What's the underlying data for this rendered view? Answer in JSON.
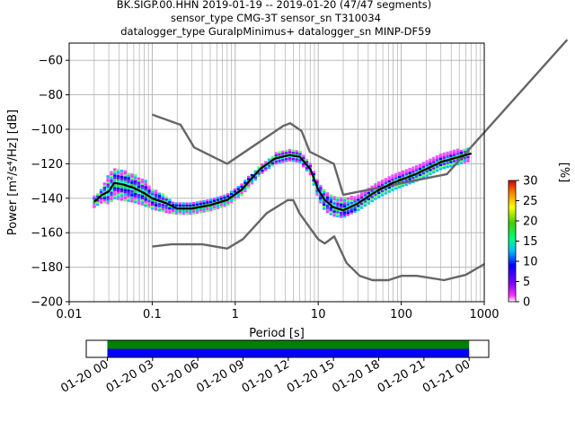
{
  "title": {
    "line1": "BK.SIGP.00.HHN   2019-01-19 -- 2019-01-20  (47/47 segments)",
    "line2": "sensor_type CMG-3T sensor_sn T310034",
    "line3": "datalogger_type GuralpMinimus+ datalogger_sn MINP-DF59"
  },
  "colors": {
    "mean_line": "#000000",
    "noise_models": "#666666",
    "timeline_green": "#008000",
    "timeline_blue": "#0000ff"
  },
  "chart_data": [
    {
      "type": "heatmap",
      "chart_kind": "probabilistic power spectral density",
      "xlabel": "Period [s]",
      "ylabel": "Power [m²/s⁴/Hz] [dB]",
      "xscale": "log",
      "xlim": [
        0.01,
        1000
      ],
      "ylim": [
        -200,
        -50
      ],
      "x_ticks": [
        "0.01",
        "0.1",
        "1",
        "10",
        "100",
        "1000"
      ],
      "y_ticks": [
        "−60",
        "−80",
        "−100",
        "−120",
        "−140",
        "−160",
        "−180",
        "−200"
      ],
      "grid": true,
      "colorbar": {
        "label": "[%]",
        "range": [
          0,
          30
        ],
        "ticks": [
          "0",
          "5",
          "10",
          "15",
          "20",
          "25",
          "30"
        ]
      },
      "series": [
        {
          "name": "",
          "role": "mean",
          "color": "#000000",
          "x": [
            0.02,
            0.025,
            0.03,
            0.035,
            0.045,
            0.06,
            0.08,
            0.1,
            0.15,
            0.2,
            0.3,
            0.5,
            0.8,
            1.2,
            2,
            3,
            4.5,
            6,
            8,
            10,
            12,
            15,
            20,
            30,
            50,
            80,
            150,
            300,
            700
          ],
          "y": [
            -142,
            -138,
            -136,
            -131,
            -132,
            -134,
            -137,
            -140,
            -143,
            -146,
            -146,
            -144,
            -141,
            -135,
            -123,
            -117,
            -115,
            -116,
            -123,
            -135,
            -141,
            -145,
            -147,
            -143,
            -136,
            -131,
            -126,
            -119,
            -114
          ]
        },
        {
          "name": "",
          "role": "new high noise model",
          "color": "#666666",
          "x": [
            0.1,
            0.22,
            0.32,
            0.8,
            3.8,
            4.6,
            6.3,
            7.9,
            15.4,
            20,
            354.8,
            10000
          ],
          "y": [
            -91.5,
            -97.4,
            -110.5,
            -120,
            -98,
            -96.5,
            -101,
            -113,
            -120,
            -138,
            -126,
            -48
          ]
        },
        {
          "name": "",
          "role": "new low noise model",
          "color": "#666666",
          "x": [
            0.1,
            0.17,
            0.4,
            0.8,
            1.24,
            2.4,
            4.3,
            5,
            6,
            10,
            12,
            15.6,
            21.9,
            31.6,
            45,
            70,
            101,
            154,
            328,
            600,
            1000
          ],
          "y": [
            -168,
            -166.7,
            -166.7,
            -169.2,
            -163.7,
            -148.6,
            -141.1,
            -141.1,
            -149,
            -163.8,
            -166.2,
            -162.1,
            -177.5,
            -185,
            -187.5,
            -187.5,
            -185,
            -185,
            -187.5,
            -184.4,
            -178.2
          ]
        }
      ],
      "density_bands": [
        {
          "x": [
            0.02,
            0.025,
            0.03,
            0.035,
            0.045,
            0.06,
            0.08,
            0.1,
            0.15,
            0.2,
            0.3,
            0.5,
            0.8,
            1.2,
            2,
            3,
            4.5,
            6,
            8,
            10,
            12,
            15,
            20,
            30,
            50,
            80,
            150,
            300,
            700
          ],
          "low": [
            -145,
            -142,
            -143,
            -140,
            -141,
            -142,
            -144,
            -146,
            -148,
            -149,
            -149,
            -147,
            -144,
            -138,
            -126,
            -120,
            -118,
            -119,
            -126,
            -140,
            -147,
            -150,
            -151,
            -147,
            -140,
            -135,
            -130,
            -123,
            -118
          ],
          "high": [
            -139,
            -134,
            -125,
            -123,
            -124,
            -126,
            -129,
            -134,
            -139,
            -143,
            -143,
            -141,
            -138,
            -132,
            -120,
            -114,
            -111,
            -112,
            -120,
            -130,
            -135,
            -139,
            -140,
            -138,
            -131,
            -126,
            -121,
            -114,
            -110
          ]
        }
      ]
    },
    {
      "type": "timeline",
      "x_ticks": [
        "01-20 00",
        "01-20 03",
        "01-20 06",
        "01-20 09",
        "01-20 12",
        "01-20 15",
        "01-20 18",
        "01-20 21",
        "01-21 00"
      ],
      "xlim_hours": [
        -1.4,
        25.3
      ],
      "bars": [
        {
          "color": "#008000",
          "start_hour": 0,
          "end_hour": 24.0
        },
        {
          "color": "#0000ff",
          "start_hour": 0,
          "end_hour": 24.0
        }
      ]
    }
  ]
}
